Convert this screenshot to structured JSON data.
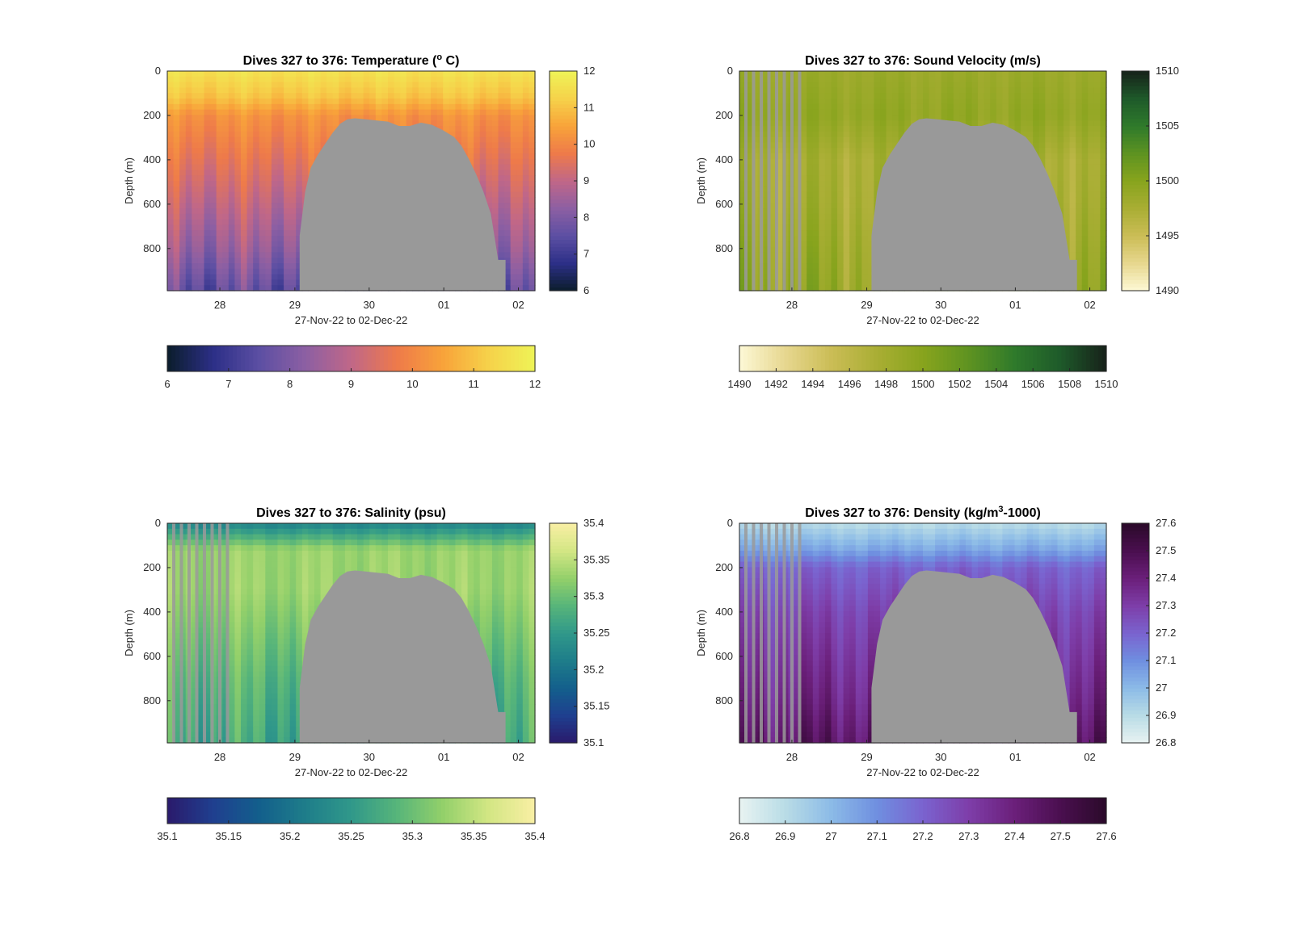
{
  "chart_data": [
    {
      "type": "heatmap",
      "title": "Dives 327 to 376: Temperature (",
      "title_sup": "o",
      "title_end": " C)",
      "xlabel": "27-Nov-22 to 02-Dec-22",
      "ylabel": "Depth (m)",
      "x_ticks": [
        "28",
        "29",
        "30",
        "01",
        "02"
      ],
      "y_ticks": [
        0,
        200,
        400,
        600,
        800
      ],
      "ylim": [
        0,
        990
      ],
      "colorbar_range": [
        6,
        12
      ],
      "colorbar_ticks": [
        6,
        7,
        8,
        9,
        10,
        11,
        12
      ],
      "h_colorbar_ticks": [
        6,
        7,
        8,
        9,
        10,
        11,
        12
      ],
      "colormap": [
        "#0b1d2b",
        "#2c2f87",
        "#5c4fa3",
        "#8c5fa3",
        "#c06788",
        "#ee7a4a",
        "#f8a33a",
        "#f6d24a",
        "#eef357"
      ],
      "bathymetry_color": "#999999",
      "profile": [
        {
          "depth": 0,
          "value": 11.6
        },
        {
          "depth": 120,
          "value": 11.0
        },
        {
          "depth": 200,
          "value": 10.2
        },
        {
          "depth": 400,
          "value": 9.6
        },
        {
          "depth": 600,
          "value": 9.0
        },
        {
          "depth": 800,
          "value": 8.4
        },
        {
          "depth": 990,
          "value": 7.6
        }
      ]
    },
    {
      "type": "heatmap",
      "title": "Dives 327 to 376: Sound Velocity (m/s)",
      "xlabel": "27-Nov-22 to 02-Dec-22",
      "ylabel": "Depth (m)",
      "x_ticks": [
        "28",
        "29",
        "30",
        "01",
        "02"
      ],
      "y_ticks": [
        0,
        200,
        400,
        600,
        800
      ],
      "ylim": [
        0,
        990
      ],
      "colorbar_range": [
        1490,
        1510
      ],
      "colorbar_ticks": [
        1490,
        1495,
        1500,
        1505,
        1510
      ],
      "h_colorbar_ticks": [
        1490,
        1492,
        1494,
        1496,
        1498,
        1500,
        1502,
        1504,
        1506,
        1508,
        1510
      ],
      "colormap": [
        "#fdf9d6",
        "#e7d78f",
        "#cbbd56",
        "#a9ae34",
        "#88a41d",
        "#5e9321",
        "#2f7a2b",
        "#1e5a2a",
        "#17221a"
      ],
      "bathymetry_color": "#999999",
      "profile": [
        {
          "depth": 0,
          "value": 1498.5
        },
        {
          "depth": 200,
          "value": 1499.2
        },
        {
          "depth": 400,
          "value": 1497.5
        },
        {
          "depth": 600,
          "value": 1497.8
        },
        {
          "depth": 800,
          "value": 1498.5
        },
        {
          "depth": 990,
          "value": 1499.0
        }
      ]
    },
    {
      "type": "heatmap",
      "title": "Dives 327 to 376: Salinity (psu)",
      "xlabel": "27-Nov-22 to 02-Dec-22",
      "ylabel": "Depth (m)",
      "x_ticks": [
        "28",
        "29",
        "30",
        "01",
        "02"
      ],
      "y_ticks": [
        0,
        200,
        400,
        600,
        800
      ],
      "ylim": [
        0,
        990
      ],
      "colorbar_range": [
        35.1,
        35.4
      ],
      "colorbar_ticks": [
        35.1,
        35.15,
        35.2,
        35.25,
        35.3,
        35.35,
        35.4
      ],
      "h_colorbar_ticks": [
        35.1,
        35.15,
        35.2,
        35.25,
        35.3,
        35.35,
        35.4
      ],
      "colormap": [
        "#2a1a6b",
        "#1f3f8f",
        "#135f8c",
        "#1e7d8a",
        "#30988a",
        "#57b57a",
        "#93d06a",
        "#d3e684",
        "#f9efa4"
      ],
      "bathymetry_color": "#999999",
      "profile": [
        {
          "depth": 0,
          "value": 35.22
        },
        {
          "depth": 120,
          "value": 35.33
        },
        {
          "depth": 300,
          "value": 35.33
        },
        {
          "depth": 500,
          "value": 35.31
        },
        {
          "depth": 700,
          "value": 35.29
        },
        {
          "depth": 990,
          "value": 35.27
        }
      ]
    },
    {
      "type": "heatmap",
      "title": "Dives 327 to 376: Density (kg/m",
      "title_sup": "3",
      "title_end": "-1000)",
      "xlabel": "27-Nov-22 to 02-Dec-22",
      "ylabel": "Depth (m)",
      "x_ticks": [
        "28",
        "29",
        "30",
        "01",
        "02"
      ],
      "y_ticks": [
        0,
        200,
        400,
        600,
        800
      ],
      "ylim": [
        0,
        990
      ],
      "colorbar_range": [
        26.8,
        27.6
      ],
      "colorbar_ticks": [
        26.8,
        26.9,
        27,
        27.1,
        27.2,
        27.3,
        27.4,
        27.5,
        27.6
      ],
      "h_colorbar_ticks": [
        26.8,
        26.9,
        27,
        27.1,
        27.2,
        27.3,
        27.4,
        27.5,
        27.6
      ],
      "colormap": [
        "#e8f3f2",
        "#b9dce6",
        "#8cbbe7",
        "#6f8fe0",
        "#7a63cf",
        "#7e3ea9",
        "#6b1f7a",
        "#4a0f4f",
        "#2b0a2a"
      ],
      "bathymetry_color": "#999999",
      "profile": [
        {
          "depth": 0,
          "value": 26.9
        },
        {
          "depth": 120,
          "value": 27.05
        },
        {
          "depth": 200,
          "value": 27.2
        },
        {
          "depth": 400,
          "value": 27.28
        },
        {
          "depth": 600,
          "value": 27.33
        },
        {
          "depth": 800,
          "value": 27.38
        },
        {
          "depth": 990,
          "value": 27.45
        }
      ]
    }
  ]
}
